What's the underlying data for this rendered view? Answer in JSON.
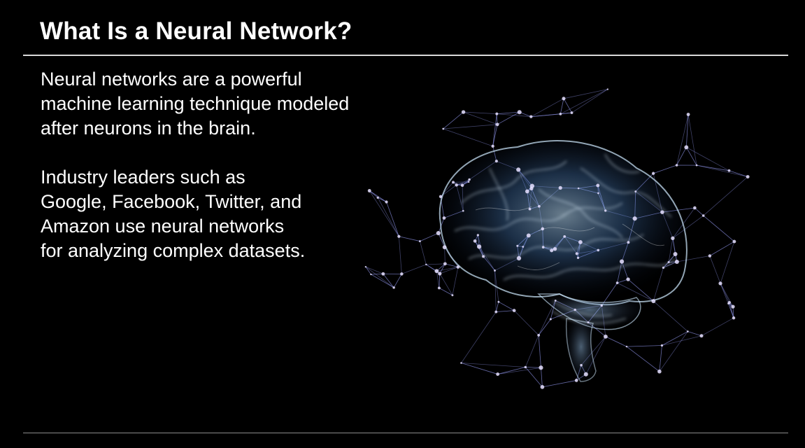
{
  "slide": {
    "title": "What Is a Neural Network?",
    "paragraphs": [
      {
        "lines": [
          "Neural networks are a powerful",
          "machine learning technique modeled",
          "after neurons in the brain."
        ]
      },
      {
        "lines": [
          "Industry leaders such as",
          "Google, Facebook, Twitter, and",
          "Amazon use neural networks",
          "for analyzing complex datasets."
        ]
      }
    ]
  },
  "image": {
    "icon": "brain-network-illustration",
    "colors": {
      "glow": "#9fd0ff",
      "line": "#8a8fe0",
      "node": "#e6e0ff",
      "background": "#000000"
    }
  }
}
